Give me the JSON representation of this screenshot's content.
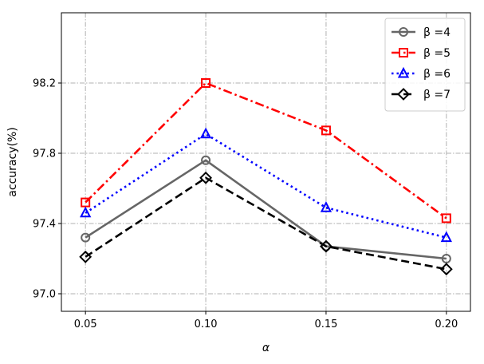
{
  "chart_data": {
    "type": "line",
    "xlabel": "α",
    "ylabel": "accuracy(%)",
    "x": [
      0.05,
      0.1,
      0.15,
      0.2
    ],
    "x_tick_labels": [
      "0.05",
      "0.10",
      "0.15",
      "0.20"
    ],
    "xlim": [
      0.04,
      0.21
    ],
    "ylim": [
      96.9,
      98.6
    ],
    "y_ticks": [
      97.0,
      97.4,
      97.8,
      98.2
    ],
    "y_tick_labels": [
      "97.0",
      "97.4",
      "97.8",
      "98.2"
    ],
    "grid": true,
    "legend_position": "top-right",
    "series": [
      {
        "name": "β =4",
        "color": "#666666",
        "dash": "solid",
        "marker": "circle",
        "values": [
          97.32,
          97.76,
          97.27,
          97.2
        ]
      },
      {
        "name": "β =5",
        "color": "#ff0000",
        "dash": "dashdot",
        "marker": "square",
        "values": [
          97.52,
          98.2,
          97.93,
          97.43
        ]
      },
      {
        "name": "β =6",
        "color": "#0000ff",
        "dash": "dotted",
        "marker": "triangle",
        "values": [
          97.46,
          97.91,
          97.49,
          97.32
        ]
      },
      {
        "name": "β =7",
        "color": "#000000",
        "dash": "dashed",
        "marker": "diamond",
        "values": [
          97.21,
          97.66,
          97.27,
          97.14
        ]
      }
    ]
  }
}
